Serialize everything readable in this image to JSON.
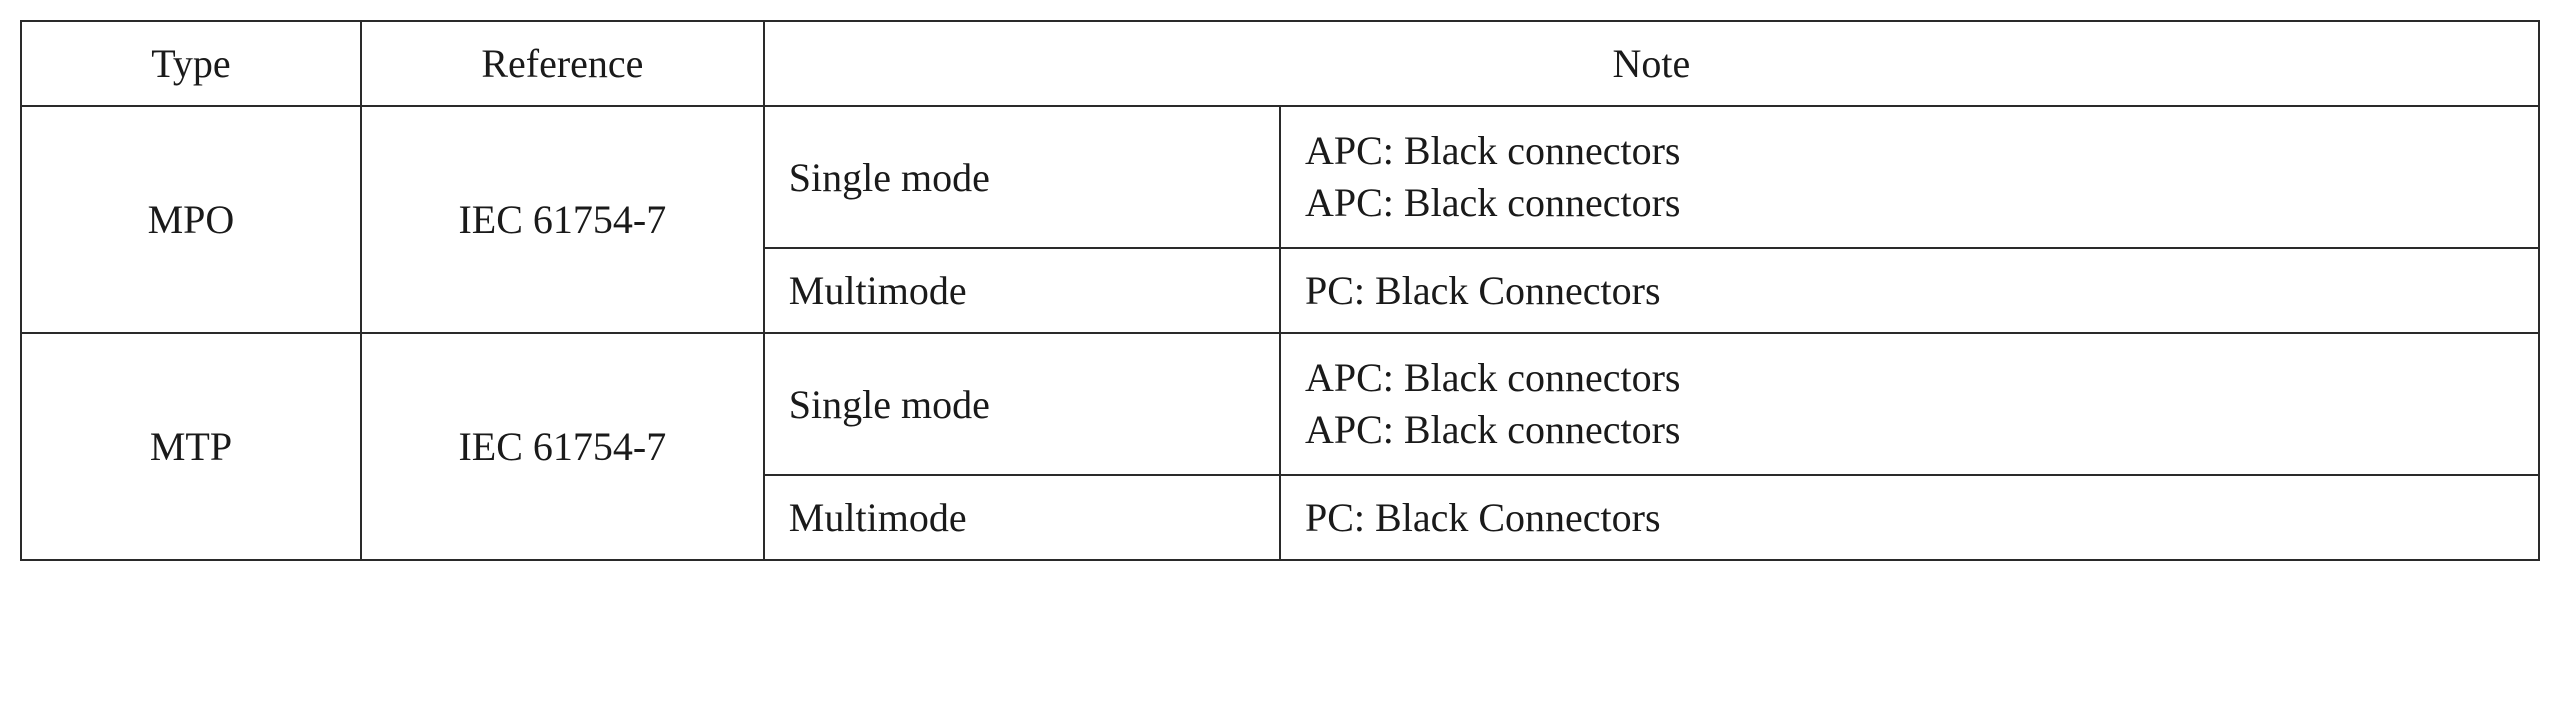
{
  "table": {
    "columns": {
      "type": "Type",
      "reference": "Reference",
      "note": "Note"
    },
    "rows": [
      {
        "type": "MPO",
        "reference": "IEC 61754-7",
        "modes": [
          {
            "mode": "Single mode",
            "note_line1": "APC: Black connectors",
            "note_line2": "APC: Black connectors"
          },
          {
            "mode": "Multimode",
            "note_line1": "PC: Black Connectors",
            "note_line2": ""
          }
        ]
      },
      {
        "type": "MTP",
        "reference": "IEC 61754-7",
        "modes": [
          {
            "mode": "Single mode",
            "note_line1": "APC: Black connectors",
            "note_line2": "APC: Black connectors"
          },
          {
            "mode": "Multimode",
            "note_line1": "PC: Black Connectors",
            "note_line2": ""
          }
        ]
      }
    ],
    "border_color": "#2a2a2a",
    "text_color": "#1a1a1a",
    "background_color": "#ffffff",
    "font_family": "Times New Roman",
    "font_size_pt": 40
  }
}
